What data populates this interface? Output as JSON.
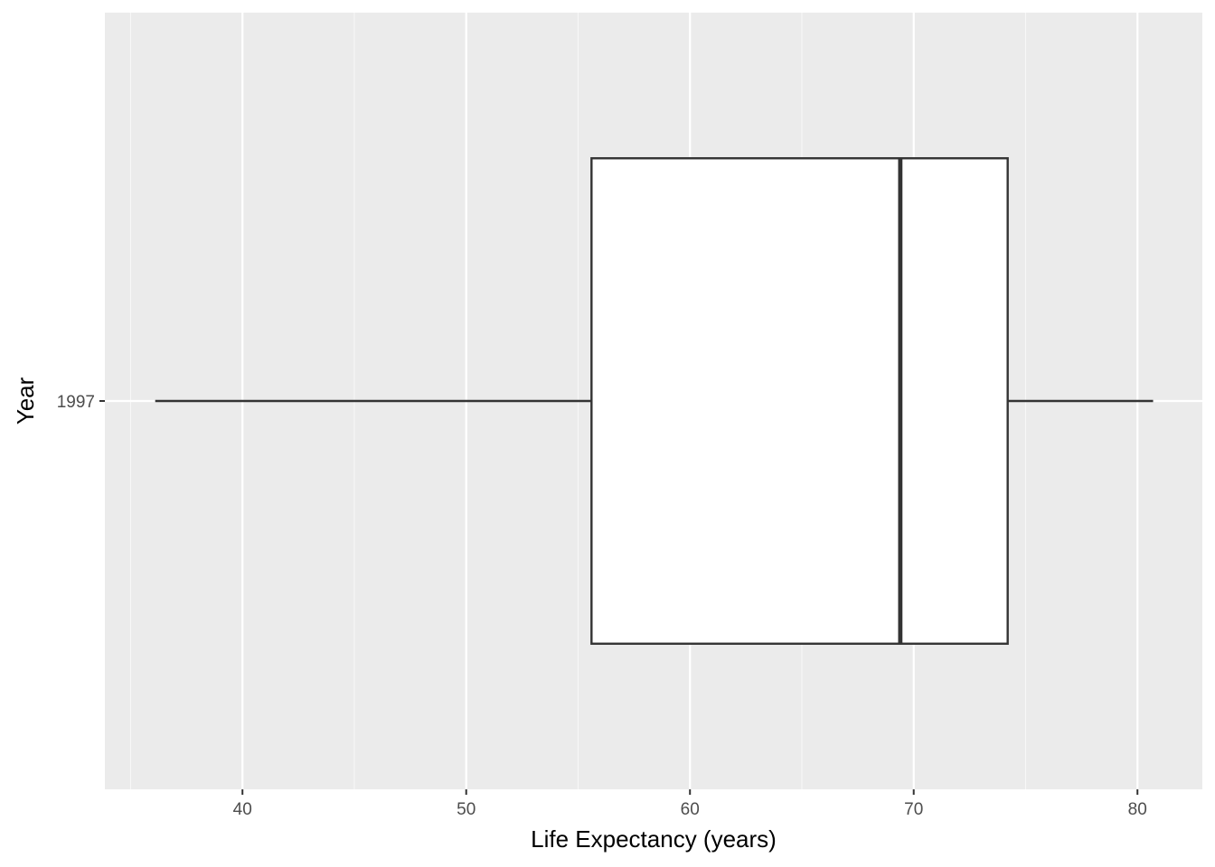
{
  "chart_data": {
    "type": "boxplot",
    "orientation": "horizontal",
    "title": "",
    "xlabel": "Life Expectancy (years)",
    "ylabel": "Year",
    "categories": [
      "1997"
    ],
    "boxes": [
      {
        "category": "1997",
        "whisker_low": 36.1,
        "q1": 55.6,
        "median": 69.4,
        "q3": 74.2,
        "whisker_high": 80.7
      }
    ],
    "xlim": [
      33.85,
      82.9
    ],
    "xticks": [
      40,
      50,
      60,
      70,
      80
    ],
    "xtick_labels": [
      "40",
      "50",
      "60",
      "70",
      "80"
    ],
    "x_minor_ticks": [
      35,
      45,
      55,
      65,
      75
    ],
    "grid": true,
    "legend": "none"
  },
  "colors": {
    "panel_background": "#ebebeb",
    "grid_major": "#ffffff",
    "grid_minor": "#f7f7f7",
    "box_fill": "#ffffff",
    "box_stroke": "#333333",
    "tick_label": "#4d4d4d",
    "axis_title": "#000000"
  }
}
